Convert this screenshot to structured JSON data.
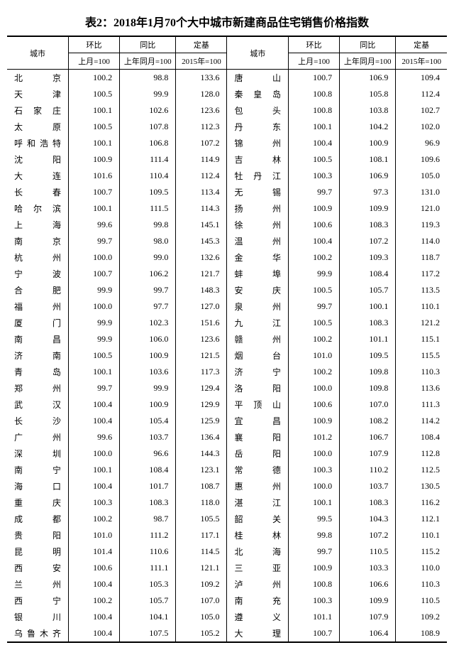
{
  "title": "表2：2018年1月70个大中城市新建商品住宅销售价格指数",
  "headers": {
    "city": "城市",
    "mom": "环比",
    "yoy": "同比",
    "base": "定基",
    "mom_sub": "上月=100",
    "yoy_sub": "上年同月=100",
    "base_sub": "2015年=100"
  },
  "left": [
    [
      "北　　京",
      "100.2",
      "98.8",
      "133.6"
    ],
    [
      "天　　津",
      "100.5",
      "99.9",
      "128.0"
    ],
    [
      "石 家 庄",
      "100.1",
      "102.6",
      "123.6"
    ],
    [
      "太　　原",
      "100.5",
      "107.8",
      "112.3"
    ],
    [
      "呼和浩特",
      "100.1",
      "106.8",
      "107.2"
    ],
    [
      "沈　　阳",
      "100.9",
      "111.4",
      "114.9"
    ],
    [
      "大　　连",
      "101.6",
      "110.4",
      "112.4"
    ],
    [
      "长　　春",
      "100.7",
      "109.5",
      "113.4"
    ],
    [
      "哈 尔 滨",
      "100.1",
      "111.5",
      "114.3"
    ],
    [
      "上　　海",
      "99.6",
      "99.8",
      "145.1"
    ],
    [
      "南　　京",
      "99.7",
      "98.0",
      "145.3"
    ],
    [
      "杭　　州",
      "100.0",
      "99.0",
      "132.6"
    ],
    [
      "宁　　波",
      "100.7",
      "106.2",
      "121.7"
    ],
    [
      "合　　肥",
      "99.9",
      "99.7",
      "148.3"
    ],
    [
      "福　　州",
      "100.0",
      "97.7",
      "127.0"
    ],
    [
      "厦　　门",
      "99.9",
      "102.3",
      "151.6"
    ],
    [
      "南　　昌",
      "99.9",
      "106.0",
      "123.6"
    ],
    [
      "济　　南",
      "100.5",
      "100.9",
      "121.5"
    ],
    [
      "青　　岛",
      "100.1",
      "103.6",
      "117.3"
    ],
    [
      "郑　　州",
      "99.7",
      "99.9",
      "129.4"
    ],
    [
      "武　　汉",
      "100.4",
      "100.9",
      "129.9"
    ],
    [
      "长　　沙",
      "100.4",
      "105.4",
      "125.9"
    ],
    [
      "广　　州",
      "99.6",
      "103.7",
      "136.4"
    ],
    [
      "深　　圳",
      "100.0",
      "96.6",
      "144.3"
    ],
    [
      "南　　宁",
      "100.1",
      "108.4",
      "123.1"
    ],
    [
      "海　　口",
      "100.4",
      "101.7",
      "108.7"
    ],
    [
      "重　　庆",
      "100.3",
      "108.3",
      "118.0"
    ],
    [
      "成　　都",
      "100.2",
      "98.7",
      "105.5"
    ],
    [
      "贵　　阳",
      "101.0",
      "111.2",
      "117.1"
    ],
    [
      "昆　　明",
      "101.4",
      "110.6",
      "114.5"
    ],
    [
      "西　　安",
      "100.6",
      "111.1",
      "121.1"
    ],
    [
      "兰　　州",
      "100.4",
      "105.3",
      "109.2"
    ],
    [
      "西　　宁",
      "100.2",
      "105.7",
      "107.0"
    ],
    [
      "银　　川",
      "100.4",
      "104.1",
      "105.0"
    ],
    [
      "乌鲁木齐",
      "100.4",
      "107.5",
      "105.2"
    ]
  ],
  "right": [
    [
      "唐　　山",
      "100.7",
      "106.9",
      "109.4"
    ],
    [
      "秦 皇 岛",
      "100.8",
      "105.8",
      "112.4"
    ],
    [
      "包　　头",
      "100.8",
      "103.8",
      "102.7"
    ],
    [
      "丹　　东",
      "100.1",
      "104.2",
      "102.0"
    ],
    [
      "锦　　州",
      "100.4",
      "100.9",
      "96.9"
    ],
    [
      "吉　　林",
      "100.5",
      "108.1",
      "109.6"
    ],
    [
      "牡 丹 江",
      "100.3",
      "106.9",
      "105.0"
    ],
    [
      "无　　锡",
      "99.7",
      "97.3",
      "131.0"
    ],
    [
      "扬　　州",
      "100.9",
      "109.9",
      "121.0"
    ],
    [
      "徐　　州",
      "100.6",
      "108.3",
      "119.3"
    ],
    [
      "温　　州",
      "100.4",
      "107.2",
      "114.0"
    ],
    [
      "金　　华",
      "100.2",
      "109.3",
      "118.7"
    ],
    [
      "蚌　　埠",
      "99.9",
      "108.4",
      "117.2"
    ],
    [
      "安　　庆",
      "100.5",
      "105.7",
      "113.5"
    ],
    [
      "泉　　州",
      "99.7",
      "100.1",
      "110.1"
    ],
    [
      "九　　江",
      "100.5",
      "108.3",
      "121.2"
    ],
    [
      "赣　　州",
      "100.2",
      "101.1",
      "115.1"
    ],
    [
      "烟　　台",
      "101.0",
      "109.5",
      "115.5"
    ],
    [
      "济　　宁",
      "100.2",
      "109.8",
      "110.3"
    ],
    [
      "洛　　阳",
      "100.0",
      "109.8",
      "113.6"
    ],
    [
      "平 顶 山",
      "100.6",
      "107.0",
      "111.3"
    ],
    [
      "宜　　昌",
      "100.9",
      "108.2",
      "114.2"
    ],
    [
      "襄　　阳",
      "101.2",
      "106.7",
      "108.4"
    ],
    [
      "岳　　阳",
      "100.0",
      "107.9",
      "112.8"
    ],
    [
      "常　　德",
      "100.3",
      "110.2",
      "112.5"
    ],
    [
      "惠　　州",
      "100.0",
      "103.7",
      "130.5"
    ],
    [
      "湛　　江",
      "100.1",
      "108.3",
      "116.2"
    ],
    [
      "韶　　关",
      "99.5",
      "104.3",
      "112.1"
    ],
    [
      "桂　　林",
      "99.8",
      "107.2",
      "110.1"
    ],
    [
      "北　　海",
      "99.7",
      "110.5",
      "115.2"
    ],
    [
      "三　　亚",
      "100.9",
      "103.3",
      "110.0"
    ],
    [
      "泸　　州",
      "100.8",
      "106.6",
      "110.3"
    ],
    [
      "南　　充",
      "100.3",
      "109.9",
      "110.5"
    ],
    [
      "遵　　义",
      "101.1",
      "107.9",
      "109.2"
    ],
    [
      "大　　理",
      "100.7",
      "106.4",
      "108.9"
    ]
  ]
}
